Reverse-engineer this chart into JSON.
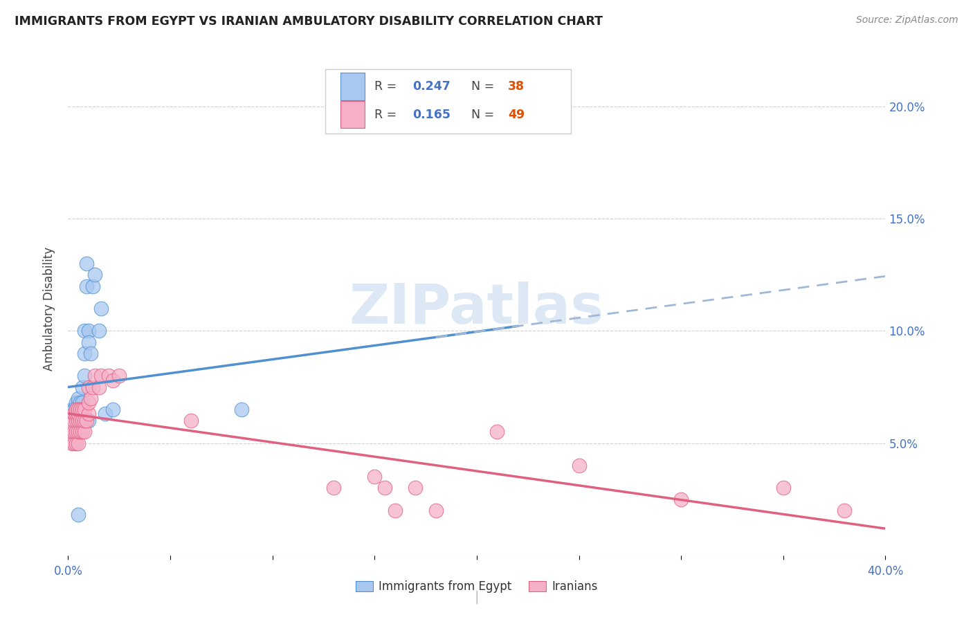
{
  "title": "IMMIGRANTS FROM EGYPT VS IRANIAN AMBULATORY DISABILITY CORRELATION CHART",
  "source": "Source: ZipAtlas.com",
  "ylabel": "Ambulatory Disability",
  "background_color": "#ffffff",
  "grid_color": "#d0d0d0",
  "xlim": [
    0.0,
    0.4
  ],
  "ylim": [
    0.0,
    0.22
  ],
  "xticks": [
    0.0,
    0.05,
    0.1,
    0.15,
    0.2,
    0.25,
    0.3,
    0.35,
    0.4
  ],
  "yticks": [
    0.0,
    0.05,
    0.1,
    0.15,
    0.2
  ],
  "color_blue": "#a8c8f0",
  "color_pink": "#f5b0c8",
  "line_color_blue": "#5090d0",
  "line_color_pink": "#e06080",
  "dashed_color": "#a0b8d8",
  "r1": "0.247",
  "n1": "38",
  "r2": "0.165",
  "n2": "49",
  "egypt_x": [
    0.002,
    0.003,
    0.003,
    0.003,
    0.004,
    0.004,
    0.004,
    0.004,
    0.005,
    0.005,
    0.005,
    0.005,
    0.005,
    0.006,
    0.006,
    0.006,
    0.006,
    0.007,
    0.007,
    0.007,
    0.007,
    0.008,
    0.008,
    0.008,
    0.009,
    0.009,
    0.01,
    0.01,
    0.01,
    0.011,
    0.012,
    0.013,
    0.015,
    0.016,
    0.018,
    0.022,
    0.085,
    0.005
  ],
  "egypt_y": [
    0.065,
    0.063,
    0.065,
    0.065,
    0.062,
    0.063,
    0.065,
    0.068,
    0.06,
    0.063,
    0.065,
    0.068,
    0.07,
    0.06,
    0.063,
    0.065,
    0.068,
    0.06,
    0.063,
    0.068,
    0.075,
    0.08,
    0.09,
    0.1,
    0.12,
    0.13,
    0.1,
    0.095,
    0.06,
    0.09,
    0.12,
    0.125,
    0.1,
    0.11,
    0.063,
    0.065,
    0.065,
    0.018
  ],
  "iran_x": [
    0.002,
    0.002,
    0.003,
    0.003,
    0.003,
    0.003,
    0.004,
    0.004,
    0.004,
    0.004,
    0.004,
    0.005,
    0.005,
    0.005,
    0.005,
    0.005,
    0.006,
    0.006,
    0.006,
    0.007,
    0.007,
    0.007,
    0.008,
    0.008,
    0.008,
    0.009,
    0.01,
    0.01,
    0.01,
    0.011,
    0.012,
    0.013,
    0.015,
    0.016,
    0.02,
    0.022,
    0.025,
    0.06,
    0.13,
    0.15,
    0.155,
    0.16,
    0.17,
    0.18,
    0.21,
    0.25,
    0.3,
    0.35,
    0.38
  ],
  "iran_y": [
    0.05,
    0.055,
    0.05,
    0.055,
    0.06,
    0.063,
    0.05,
    0.055,
    0.06,
    0.063,
    0.065,
    0.05,
    0.055,
    0.06,
    0.063,
    0.065,
    0.055,
    0.06,
    0.065,
    0.055,
    0.06,
    0.065,
    0.055,
    0.06,
    0.065,
    0.06,
    0.063,
    0.068,
    0.075,
    0.07,
    0.075,
    0.08,
    0.075,
    0.08,
    0.08,
    0.078,
    0.08,
    0.06,
    0.03,
    0.035,
    0.03,
    0.02,
    0.03,
    0.02,
    0.055,
    0.04,
    0.025,
    0.03,
    0.02
  ]
}
